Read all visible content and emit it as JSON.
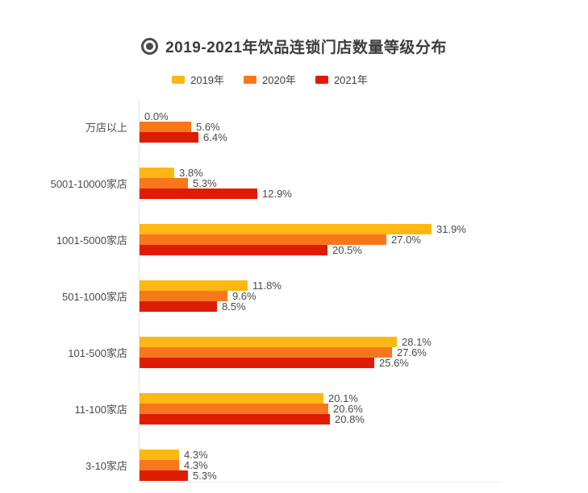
{
  "header": {
    "title": "2019-2021年饮品连锁门店数量等级分布"
  },
  "chart_data": {
    "type": "bar",
    "orientation": "horizontal",
    "title": "2019-2021年饮品连锁门店数量等级分布",
    "categories": [
      "万店以上",
      "5001-10000家店",
      "1001-5000家店",
      "501-1000家店",
      "101-500家店",
      "11-100家店",
      "3-10家店"
    ],
    "series": [
      {
        "name": "2019年",
        "color": "#FDB813",
        "values": [
          0.0,
          3.8,
          31.9,
          11.8,
          28.1,
          20.1,
          4.3
        ]
      },
      {
        "name": "2020年",
        "color": "#F8771D",
        "values": [
          5.6,
          5.3,
          27.0,
          9.6,
          27.6,
          20.6,
          4.3
        ]
      },
      {
        "name": "2021年",
        "color": "#DE1C02",
        "values": [
          6.4,
          12.9,
          20.5,
          8.5,
          25.6,
          20.8,
          5.3
        ]
      }
    ],
    "value_suffix": "%",
    "value_label_decimals": 1,
    "xlim": [
      0,
      39.3
    ],
    "grid": false,
    "legend_position": "top",
    "title_color": "#3C3C3C",
    "text_color": "#4A4A4A",
    "axis_color": "#E2E2E2"
  }
}
